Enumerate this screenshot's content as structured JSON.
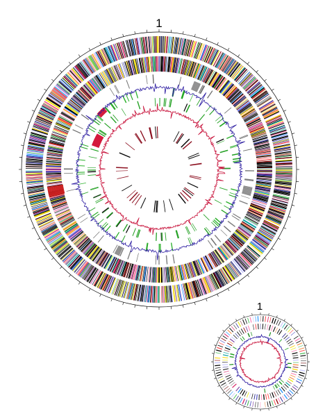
{
  "figure": {
    "maps": [
      {
        "name": "large-genome-map",
        "origin_label": "1",
        "tracks": [
          {
            "name": "cds-forward-strand",
            "kind": "dense-colored"
          },
          {
            "name": "cds-reverse-strand",
            "kind": "dense-colored"
          },
          {
            "name": "feature-set-a",
            "kind": "sparse",
            "colors": [
              "#707070"
            ]
          },
          {
            "name": "feature-set-b",
            "kind": "sparse",
            "colors": [
              "#22a022"
            ]
          },
          {
            "name": "feature-set-c",
            "kind": "sparse",
            "colors": [
              "#22a022",
              "#d41a3c"
            ]
          },
          {
            "name": "gc-content",
            "kind": "line",
            "colors": [
              "#2a1aa0"
            ]
          },
          {
            "name": "gc-skew",
            "kind": "line",
            "colors": [
              "#c8143c"
            ]
          },
          {
            "name": "inner-features",
            "kind": "sparse",
            "colors": [
              "#8c1020",
              "#000000"
            ]
          }
        ]
      },
      {
        "name": "small-genome-map",
        "origin_label": "1",
        "tracks": [
          {
            "name": "cds-forward-strand",
            "kind": "dense-colored"
          },
          {
            "name": "cds-reverse-strand",
            "kind": "dense-colored"
          },
          {
            "name": "feature-set-a",
            "kind": "sparse",
            "colors": [
              "#22a022"
            ]
          },
          {
            "name": "gc-content",
            "kind": "line",
            "colors": [
              "#2a1aa0"
            ]
          },
          {
            "name": "gc-skew",
            "kind": "line",
            "colors": [
              "#c8143c"
            ]
          }
        ]
      }
    ],
    "palette": [
      "#000000",
      "#2b2b8c",
      "#d81b60",
      "#ff7eb3",
      "#ffffff",
      "#1e90ff",
      "#e8e800",
      "#7b3f9e",
      "#00a0a0",
      "#ff4040",
      "#3cb44b",
      "#f58231",
      "#808080",
      "#a06060",
      "#4040c0",
      "#c0c0ff",
      "#ffd700",
      "#8b0000"
    ]
  }
}
